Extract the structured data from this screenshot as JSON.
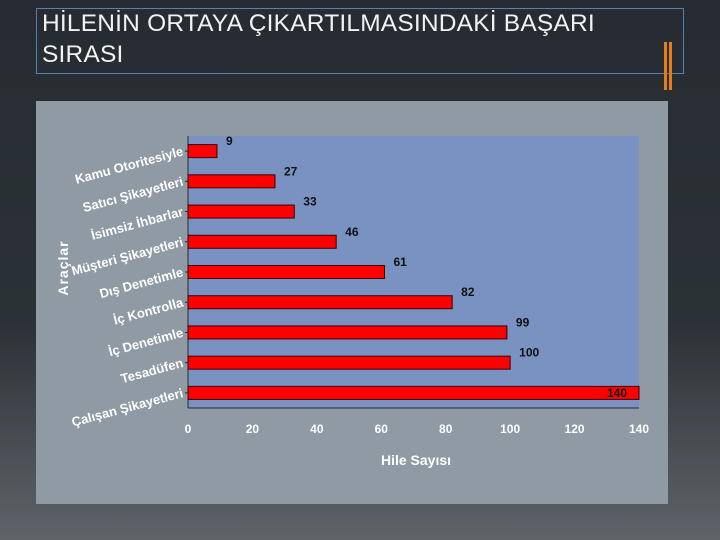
{
  "slide": {
    "title": "HİLENİN ORTAYA ÇIKARTILMASINDAKİ BAŞARI SIRASI",
    "accent_color": "#e87c16",
    "frame_color": "#5a7fa8"
  },
  "chart_data": {
    "type": "bar",
    "orientation": "horizontal",
    "categories": [
      "Kamu Otoritesiyle",
      "Satıcı Şikayetleri",
      "İsimsiz İhbarlar",
      "Müşteri Şikayetleri",
      "Dış Denetimle",
      "İç Kontrolla",
      "İç Denetimle",
      "Tesadüfen",
      "Çalışan Şikayetleri"
    ],
    "values": [
      9,
      27,
      33,
      46,
      61,
      82,
      99,
      100,
      140
    ],
    "xlabel": "Hile Sayısı",
    "ylabel": "Araçlar",
    "xlim": [
      0,
      140
    ],
    "xticks": [
      "0",
      "20",
      "40",
      "60",
      "80",
      "100",
      "120",
      "140"
    ],
    "grid": false,
    "bar_color": "#ff0000",
    "plot_background": "#7a92c2"
  }
}
